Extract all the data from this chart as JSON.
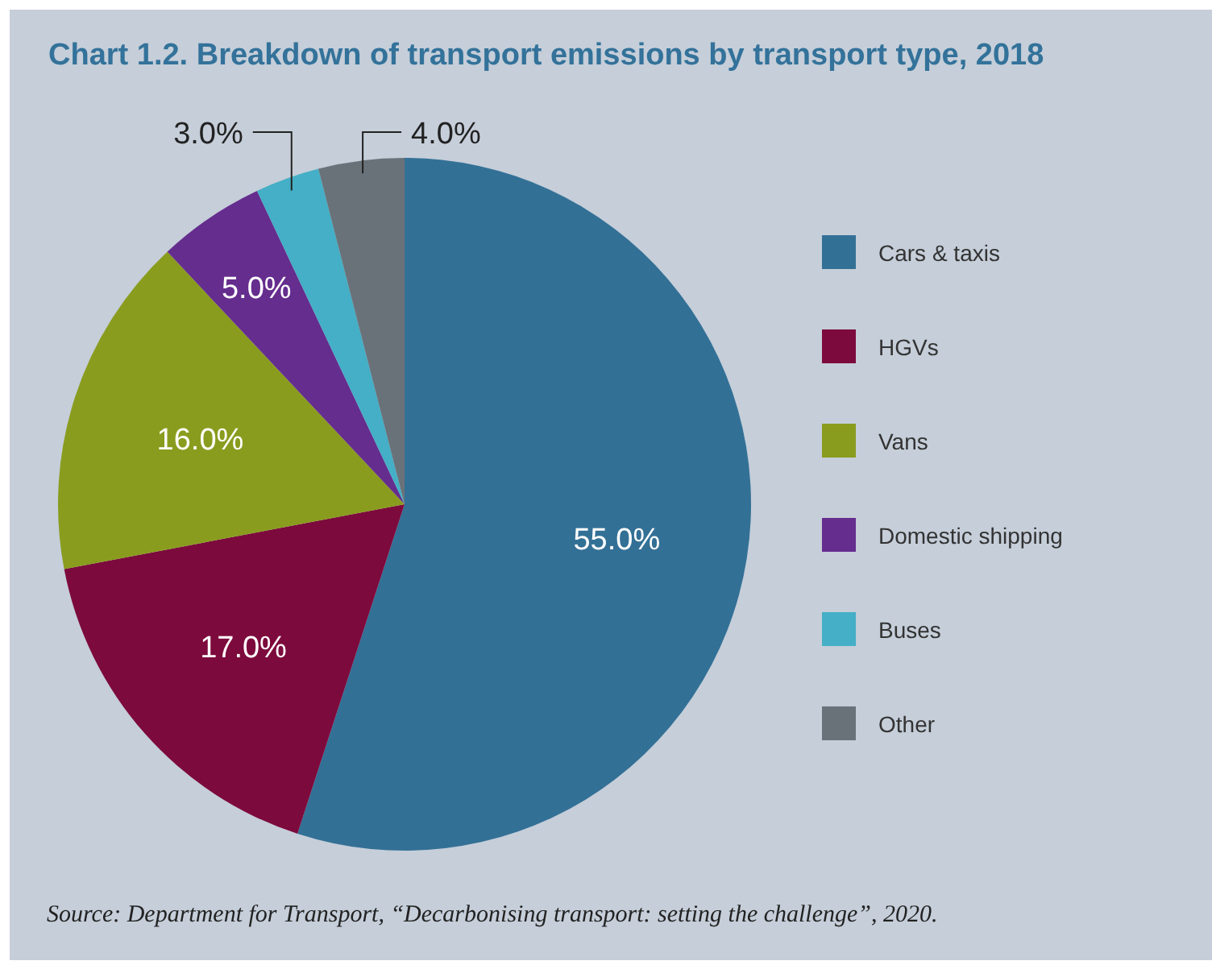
{
  "chart_data": {
    "type": "pie",
    "title": "Chart 1.2. Breakdown of transport emissions by transport type, 2018",
    "categories": [
      "Cars & taxis",
      "HGVs",
      "Vans",
      "Domestic shipping",
      "Buses",
      "Other"
    ],
    "values": [
      55,
      17,
      16,
      5,
      3,
      4
    ],
    "colors": [
      "#337096",
      "#7d0a3c",
      "#8a9c1e",
      "#652d8e",
      "#44afc6",
      "#6a7279"
    ],
    "value_labels": [
      "55.0%",
      "17.0%",
      "16.0%",
      "5.0%",
      "3.0%",
      "4.0%"
    ],
    "legend": "right",
    "annotations": [
      "Source: Department for Transport, “Decarbonising transport: setting the challenge”, 2020."
    ]
  }
}
